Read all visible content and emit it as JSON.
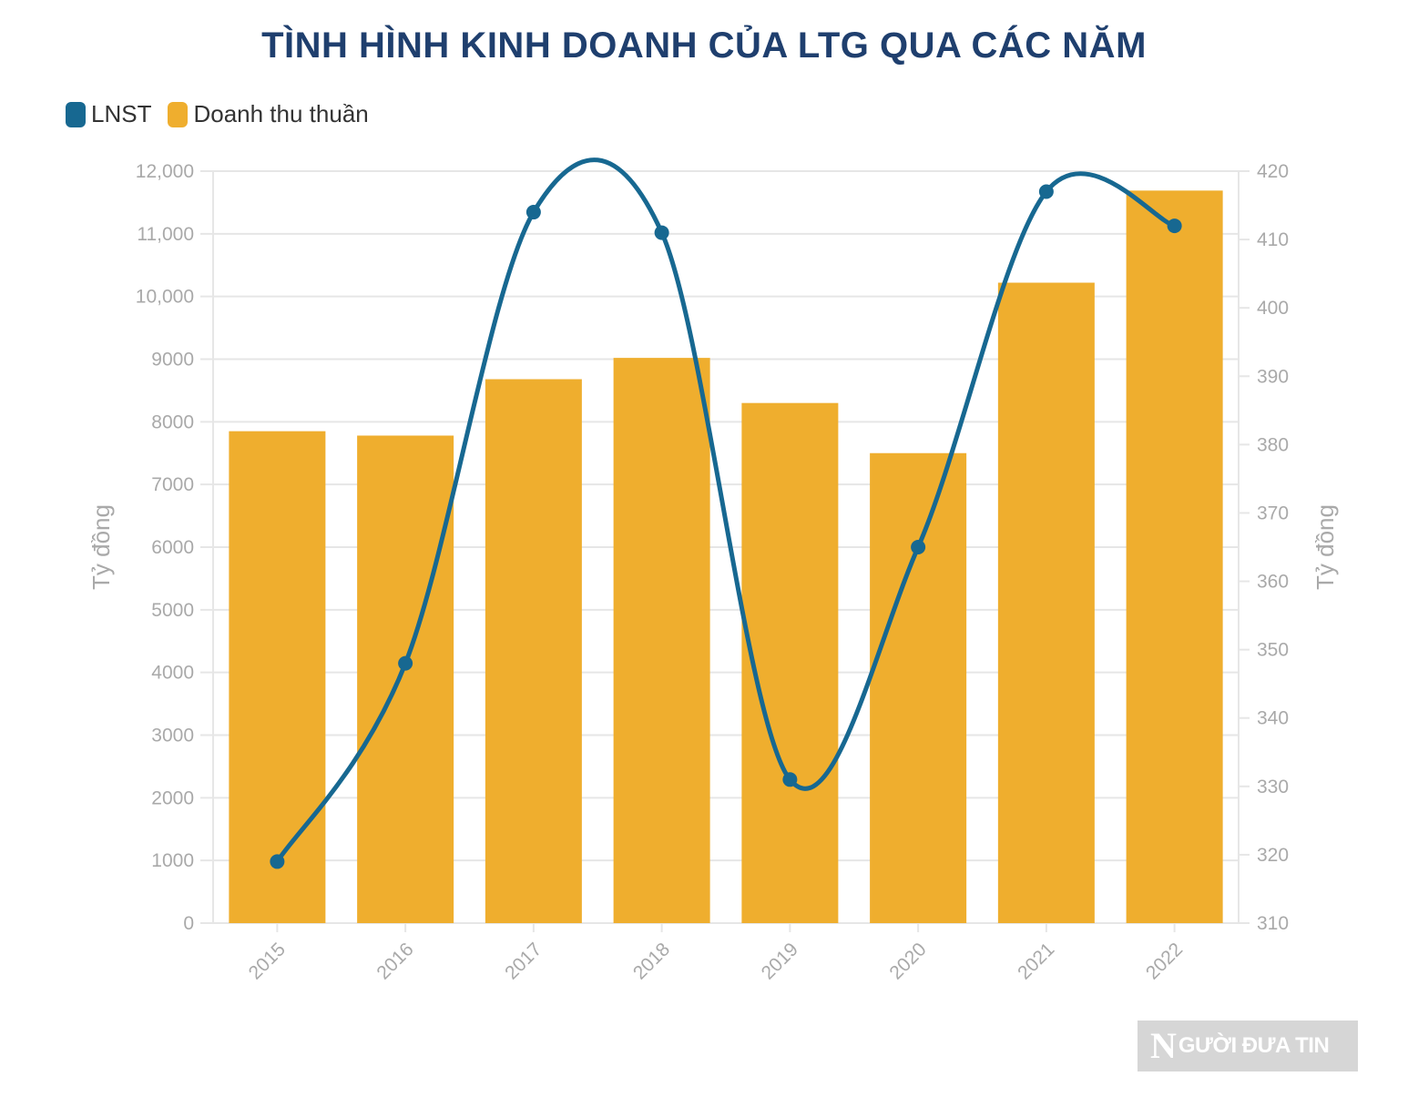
{
  "chart_data": {
    "type": "bar",
    "title": "TÌNH HÌNH KINH DOANH CỦA LTG QUA CÁC NĂM",
    "categories": [
      "2015",
      "2016",
      "2017",
      "2018",
      "2019",
      "2020",
      "2021",
      "2022"
    ],
    "series": [
      {
        "name": "Doanh thu thuần",
        "type": "bar",
        "axis": "left",
        "color": "#efae2e",
        "values": [
          7850,
          7780,
          8680,
          9020,
          8300,
          7500,
          10220,
          11690
        ]
      },
      {
        "name": "LNST",
        "type": "line",
        "axis": "right",
        "color": "#176891",
        "values": [
          319,
          348,
          414,
          411,
          331,
          365,
          417,
          412
        ]
      }
    ],
    "y_left": {
      "label": "Tỷ đồng",
      "ylim": [
        0,
        12000
      ],
      "ticks": [
        "0",
        "1000",
        "2000",
        "3000",
        "4000",
        "5000",
        "6000",
        "7000",
        "8000",
        "9000",
        "10,000",
        "11,000",
        "12,000"
      ]
    },
    "y_right": {
      "label": "Tỷ đồng",
      "ylim": [
        310,
        420
      ],
      "ticks": [
        "310",
        "320",
        "330",
        "340",
        "350",
        "360",
        "370",
        "380",
        "390",
        "400",
        "410",
        "420"
      ]
    },
    "grid": true,
    "legend_position": "top-left"
  },
  "legend": {
    "lnst_label": "LNST",
    "revenue_label": "Doanh thu thuần"
  },
  "watermark": {
    "initial": "N",
    "text": "GƯỜI ĐƯA TIN"
  }
}
